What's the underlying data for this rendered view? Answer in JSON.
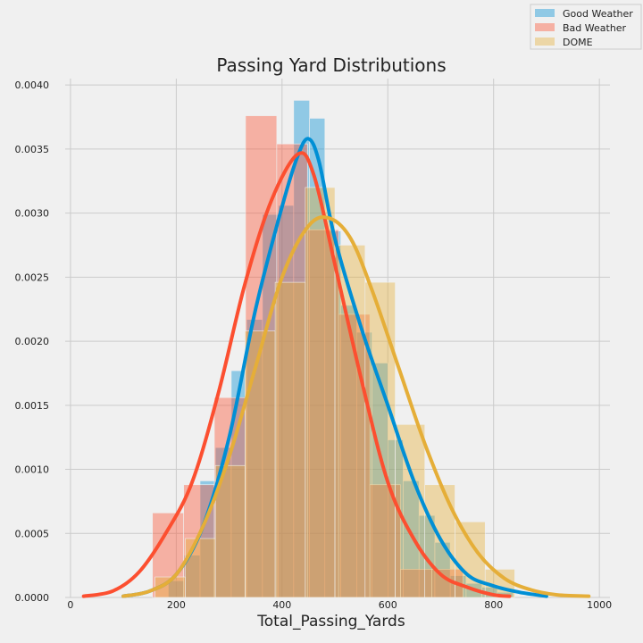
{
  "chart_data": {
    "type": "histogram+kde",
    "title": "Passing Yard Distributions",
    "xlabel": "Total_Passing_Yards",
    "ylabel": "",
    "xlim": [
      -10,
      1020
    ],
    "ylim": [
      0,
      0.00405
    ],
    "xticks": [
      0,
      200,
      400,
      600,
      800,
      1000
    ],
    "yticks": [
      0.0,
      0.0005,
      0.001,
      0.0015,
      0.002,
      0.0025,
      0.003,
      0.0035,
      0.004
    ],
    "ytick_labels": [
      "0.0000",
      "0.0005",
      "0.0010",
      "0.0015",
      "0.0020",
      "0.0025",
      "0.0030",
      "0.0035",
      "0.0040"
    ],
    "grid": true,
    "legend_position": "top-right",
    "series": [
      {
        "name": "Good Weather",
        "color": "#008fd5",
        "hist": [
          {
            "x0": 185,
            "x1": 215,
            "y": 0.00013
          },
          {
            "x0": 215,
            "x1": 245,
            "y": 0.00033
          },
          {
            "x0": 245,
            "x1": 274,
            "y": 0.00091
          },
          {
            "x0": 274,
            "x1": 304,
            "y": 0.00117
          },
          {
            "x0": 304,
            "x1": 333,
            "y": 0.00177
          },
          {
            "x0": 333,
            "x1": 363,
            "y": 0.00217
          },
          {
            "x0": 363,
            "x1": 393,
            "y": 0.00299
          },
          {
            "x0": 393,
            "x1": 422,
            "y": 0.00306
          },
          {
            "x0": 422,
            "x1": 452,
            "y": 0.00388
          },
          {
            "x0": 452,
            "x1": 481,
            "y": 0.00374
          },
          {
            "x0": 481,
            "x1": 511,
            "y": 0.00286
          },
          {
            "x0": 511,
            "x1": 541,
            "y": 0.00228
          },
          {
            "x0": 541,
            "x1": 570,
            "y": 0.00207
          },
          {
            "x0": 570,
            "x1": 600,
            "y": 0.00183
          },
          {
            "x0": 600,
            "x1": 629,
            "y": 0.00123
          },
          {
            "x0": 629,
            "x1": 659,
            "y": 0.00091
          },
          {
            "x0": 659,
            "x1": 689,
            "y": 0.00064
          },
          {
            "x0": 689,
            "x1": 718,
            "y": 0.00043
          },
          {
            "x0": 718,
            "x1": 748,
            "y": 0.00017
          },
          {
            "x0": 748,
            "x1": 778,
            "y": 0.00011
          },
          {
            "x0": 778,
            "x1": 807,
            "y": 8e-05
          },
          {
            "x0": 807,
            "x1": 837,
            "y": 4e-05
          }
        ],
        "kde": [
          [
            100,
            1e-05
          ],
          [
            150,
            5e-05
          ],
          [
            200,
            0.00018
          ],
          [
            250,
            0.00055
          ],
          [
            300,
            0.00125
          ],
          [
            350,
            0.00225
          ],
          [
            400,
            0.00305
          ],
          [
            430,
            0.00345
          ],
          [
            450,
            0.00358
          ],
          [
            470,
            0.0034
          ],
          [
            500,
            0.0028
          ],
          [
            550,
            0.0021
          ],
          [
            600,
            0.0015
          ],
          [
            650,
            0.0009
          ],
          [
            700,
            0.00045
          ],
          [
            750,
            0.00018
          ],
          [
            800,
            9e-05
          ],
          [
            850,
            4e-05
          ],
          [
            900,
            1e-05
          ]
        ]
      },
      {
        "name": "Bad Weather",
        "color": "#fc4f30",
        "hist": [
          {
            "x0": 155,
            "x1": 214,
            "y": 0.00066
          },
          {
            "x0": 214,
            "x1": 272,
            "y": 0.00088
          },
          {
            "x0": 272,
            "x1": 331,
            "y": 0.00156
          },
          {
            "x0": 331,
            "x1": 390,
            "y": 0.00376
          },
          {
            "x0": 390,
            "x1": 448,
            "y": 0.00354
          },
          {
            "x0": 448,
            "x1": 507,
            "y": 0.00287
          },
          {
            "x0": 507,
            "x1": 566,
            "y": 0.00221
          },
          {
            "x0": 566,
            "x1": 624,
            "y": 0.00088
          },
          {
            "x0": 624,
            "x1": 683,
            "y": 0.00022
          },
          {
            "x0": 683,
            "x1": 742,
            "y": 0.00022
          }
        ],
        "kde": [
          [
            25,
            1e-05
          ],
          [
            80,
            5e-05
          ],
          [
            130,
            0.0002
          ],
          [
            180,
            0.0005
          ],
          [
            230,
            0.0009
          ],
          [
            280,
            0.0016
          ],
          [
            330,
            0.00245
          ],
          [
            380,
            0.0031
          ],
          [
            430,
            0.00346
          ],
          [
            460,
            0.0033
          ],
          [
            500,
            0.0026
          ],
          [
            550,
            0.0017
          ],
          [
            600,
            0.0009
          ],
          [
            650,
            0.00045
          ],
          [
            700,
            0.00018
          ],
          [
            750,
            8e-05
          ],
          [
            800,
            2e-05
          ],
          [
            830,
            1e-05
          ]
        ]
      },
      {
        "name": "DOME",
        "color": "#e5ae38",
        "hist": [
          {
            "x0": 160,
            "x1": 217,
            "y": 0.00016
          },
          {
            "x0": 217,
            "x1": 274,
            "y": 0.00046
          },
          {
            "x0": 274,
            "x1": 330,
            "y": 0.00103
          },
          {
            "x0": 330,
            "x1": 387,
            "y": 0.00208
          },
          {
            "x0": 387,
            "x1": 444,
            "y": 0.00246
          },
          {
            "x0": 444,
            "x1": 500,
            "y": 0.0032
          },
          {
            "x0": 500,
            "x1": 557,
            "y": 0.00275
          },
          {
            "x0": 557,
            "x1": 614,
            "y": 0.00246
          },
          {
            "x0": 614,
            "x1": 670,
            "y": 0.00135
          },
          {
            "x0": 670,
            "x1": 727,
            "y": 0.00088
          },
          {
            "x0": 727,
            "x1": 784,
            "y": 0.00059
          },
          {
            "x0": 784,
            "x1": 840,
            "y": 0.00022
          }
        ],
        "kde": [
          [
            100,
            1e-05
          ],
          [
            150,
            5e-05
          ],
          [
            200,
            0.00018
          ],
          [
            250,
            0.00055
          ],
          [
            300,
            0.0011
          ],
          [
            350,
            0.0018
          ],
          [
            400,
            0.0025
          ],
          [
            450,
            0.0029
          ],
          [
            490,
            0.00296
          ],
          [
            530,
            0.0028
          ],
          [
            570,
            0.0024
          ],
          [
            620,
            0.0018
          ],
          [
            670,
            0.0012
          ],
          [
            720,
            0.0007
          ],
          [
            770,
            0.00035
          ],
          [
            820,
            0.00015
          ],
          [
            870,
            6e-05
          ],
          [
            920,
            2e-05
          ],
          [
            980,
            1e-05
          ]
        ]
      }
    ]
  }
}
